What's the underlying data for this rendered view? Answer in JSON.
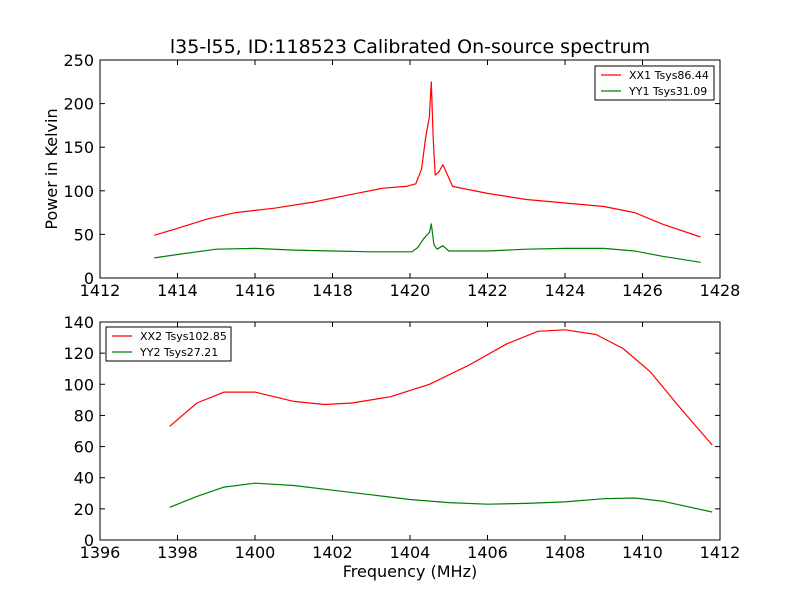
{
  "title": "l35-l55, ID:118523 Calibrated On-source spectrum",
  "colors": {
    "xx": "#ff0000",
    "yy": "#007f00"
  },
  "chart_data": [
    {
      "type": "line",
      "title": "l35-l55, ID:118523 Calibrated On-source spectrum",
      "xlabel": "",
      "ylabel": "Power in Kelvin",
      "xlim": [
        1412,
        1428
      ],
      "ylim": [
        0,
        250
      ],
      "xticks": [
        1412,
        1414,
        1416,
        1418,
        1420,
        1422,
        1424,
        1426,
        1428
      ],
      "yticks": [
        0,
        50,
        100,
        150,
        200,
        250
      ],
      "grid": false,
      "legend_position": "top-right",
      "series": [
        {
          "name": "XX1 Tsys86.44",
          "color": "#ff0000",
          "points": [
            [
              1413.4,
              49
            ],
            [
              1414,
              57
            ],
            [
              1414.8,
              68
            ],
            [
              1415.5,
              75
            ],
            [
              1416.5,
              80
            ],
            [
              1417.5,
              87
            ],
            [
              1418.5,
              96
            ],
            [
              1419.3,
              103
            ],
            [
              1419.9,
              105
            ],
            [
              1420.15,
              108
            ],
            [
              1420.3,
              125
            ],
            [
              1420.4,
              160
            ],
            [
              1420.5,
              185
            ],
            [
              1420.55,
              225
            ],
            [
              1420.6,
              160
            ],
            [
              1420.65,
              118
            ],
            [
              1420.75,
              122
            ],
            [
              1420.85,
              130
            ],
            [
              1420.95,
              120
            ],
            [
              1421.1,
              105
            ],
            [
              1422,
              97
            ],
            [
              1423,
              90
            ],
            [
              1424,
              86
            ],
            [
              1425,
              82
            ],
            [
              1425.8,
              75
            ],
            [
              1426.5,
              62
            ],
            [
              1427.5,
              47
            ]
          ]
        },
        {
          "name": "YY1 Tsys31.09",
          "color": "#007f00",
          "points": [
            [
              1413.4,
              23
            ],
            [
              1414,
              27
            ],
            [
              1415,
              33
            ],
            [
              1416,
              34
            ],
            [
              1417,
              32
            ],
            [
              1418,
              31
            ],
            [
              1419,
              30
            ],
            [
              1420.05,
              30
            ],
            [
              1420.2,
              35
            ],
            [
              1420.35,
              45
            ],
            [
              1420.45,
              50
            ],
            [
              1420.5,
              52
            ],
            [
              1420.55,
              62
            ],
            [
              1420.62,
              38
            ],
            [
              1420.7,
              33
            ],
            [
              1420.85,
              37
            ],
            [
              1421,
              31
            ],
            [
              1422,
              31
            ],
            [
              1423,
              33
            ],
            [
              1424,
              34
            ],
            [
              1425,
              34
            ],
            [
              1425.8,
              31
            ],
            [
              1426.5,
              25
            ],
            [
              1427.5,
              18
            ]
          ]
        }
      ]
    },
    {
      "type": "line",
      "title": "",
      "xlabel": "Frequency (MHz)",
      "ylabel": "",
      "xlim": [
        1396,
        1412
      ],
      "ylim": [
        0,
        140
      ],
      "xticks": [
        1396,
        1398,
        1400,
        1402,
        1404,
        1406,
        1408,
        1410,
        1412
      ],
      "yticks": [
        0,
        20,
        40,
        60,
        80,
        100,
        120,
        140
      ],
      "grid": false,
      "legend_position": "top-left",
      "series": [
        {
          "name": "XX2 Tsys102.85",
          "color": "#ff0000",
          "points": [
            [
              1397.8,
              73
            ],
            [
              1398.5,
              88
            ],
            [
              1399.2,
              95
            ],
            [
              1400,
              95
            ],
            [
              1401,
              89
            ],
            [
              1401.8,
              87
            ],
            [
              1402.5,
              88
            ],
            [
              1403.5,
              92
            ],
            [
              1404.5,
              100
            ],
            [
              1405.5,
              112
            ],
            [
              1406.5,
              126
            ],
            [
              1407.3,
              134
            ],
            [
              1408,
              135
            ],
            [
              1408.8,
              132
            ],
            [
              1409.5,
              123
            ],
            [
              1410.2,
              108
            ],
            [
              1411,
              84
            ],
            [
              1411.8,
              61
            ]
          ]
        },
        {
          "name": "YY2 Tsys27.21",
          "color": "#007f00",
          "points": [
            [
              1397.8,
              21
            ],
            [
              1398.5,
              28
            ],
            [
              1399.2,
              34
            ],
            [
              1400,
              36.5
            ],
            [
              1401,
              35
            ],
            [
              1402,
              32
            ],
            [
              1403,
              29
            ],
            [
              1404,
              26
            ],
            [
              1405,
              24
            ],
            [
              1406,
              23
            ],
            [
              1407,
              23.5
            ],
            [
              1408,
              24.5
            ],
            [
              1409,
              26.5
            ],
            [
              1409.8,
              27
            ],
            [
              1410.5,
              25
            ],
            [
              1411.8,
              18
            ]
          ]
        }
      ]
    }
  ]
}
